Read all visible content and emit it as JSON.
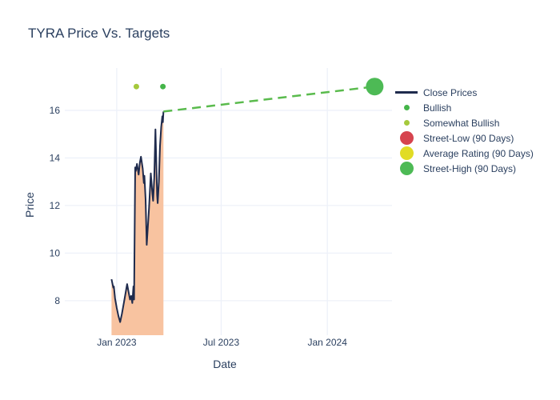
{
  "colors": {
    "text": "#2a3f5f",
    "grid": "#edf1f9",
    "close_line": "#1f2b4d",
    "close_fill": "#f8c3a0",
    "bullish": "#45b549",
    "somewhat_bullish": "#a5c93c",
    "street_low": "#d6444e",
    "average_rating": "#e1dc25",
    "street_high": "#4dba55",
    "target_dash": "#5abb4d"
  },
  "legend": {
    "items": [
      {
        "label": "Close Prices",
        "marker": "line",
        "color_key": "close_line",
        "name": "close-prices"
      },
      {
        "label": "Bullish",
        "marker": "dot-sm",
        "color_key": "bullish",
        "name": "bullish"
      },
      {
        "label": "Somewhat Bullish",
        "marker": "dot-sm",
        "color_key": "somewhat_bullish",
        "name": "somewhat-bullish"
      },
      {
        "label": "Street-Low (90 Days)",
        "marker": "dot-lg",
        "color_key": "street_low",
        "name": "street-low"
      },
      {
        "label": "Average Rating (90 Days)",
        "marker": "dot-lg",
        "color_key": "average_rating",
        "name": "average-rating"
      },
      {
        "label": "Street-High (90 Days)",
        "marker": "dot-lg",
        "color_key": "street_high",
        "name": "street-high"
      }
    ]
  },
  "chart_data": {
    "type": "line",
    "title": "TYRA Price Vs. Targets",
    "xlabel": "Date",
    "ylabel": "Price",
    "y_ticks": [
      8,
      10,
      12,
      14,
      16
    ],
    "x_ticks": [
      {
        "label": "Jan 2023",
        "date": "2023-01-01"
      },
      {
        "label": "Jul 2023",
        "date": "2023-07-01"
      },
      {
        "label": "Jan 2024",
        "date": "2024-01-01"
      }
    ],
    "ylim": [
      6.55,
      17.78
    ],
    "xlim": [
      "2022-10-03",
      "2024-04-22"
    ],
    "grid": true,
    "legend_position": "right",
    "close_prices": {
      "name": "Close Prices",
      "x": [
        "2022-12-23",
        "2022-12-26",
        "2022-12-27",
        "2022-12-29",
        "2023-01-01",
        "2023-01-04",
        "2023-01-07",
        "2023-01-10",
        "2023-01-14",
        "2023-01-19",
        "2023-01-22",
        "2023-01-24",
        "2023-01-26",
        "2023-01-28",
        "2023-01-30",
        "2023-01-31",
        "2023-02-02",
        "2023-02-03",
        "2023-02-05",
        "2023-02-08",
        "2023-02-10",
        "2023-02-12",
        "2023-02-15",
        "2023-02-17",
        "2023-02-18",
        "2023-02-20",
        "2023-02-22",
        "2023-02-26",
        "2023-03-01",
        "2023-03-04",
        "2023-03-05",
        "2023-03-07",
        "2023-03-09",
        "2023-03-12",
        "2023-03-13",
        "2023-03-15",
        "2023-03-17",
        "2023-03-19",
        "2023-03-21",
        "2023-03-22",
        "2023-03-23"
      ],
      "y": [
        8.9,
        8.55,
        8.6,
        8.1,
        7.7,
        7.35,
        7.1,
        7.45,
        8.0,
        8.7,
        8.3,
        8.05,
        8.2,
        7.9,
        8.6,
        8.05,
        13.6,
        13.45,
        13.75,
        13.3,
        13.8,
        14.05,
        13.55,
        12.95,
        13.25,
        12.25,
        10.35,
        11.9,
        13.35,
        12.45,
        12.2,
        13.15,
        15.2,
        12.45,
        12.1,
        13.0,
        14.5,
        15.3,
        15.75,
        15.5,
        15.95
      ]
    },
    "ratings": [
      {
        "name": "Somewhat Bullish",
        "date": "2023-02-04",
        "price": 17,
        "color_key": "somewhat_bullish"
      },
      {
        "name": "Bullish",
        "date": "2023-03-22",
        "price": 17,
        "color_key": "bullish"
      }
    ],
    "price_target": {
      "name": "Street-High (90 Days)",
      "date": "2024-03-23",
      "price": 17,
      "color_key": "street_high"
    },
    "projection": {
      "x": [
        "2023-03-23",
        "2024-03-23"
      ],
      "y": [
        15.95,
        17
      ],
      "style": "dashed",
      "color_key": "target_dash"
    }
  }
}
